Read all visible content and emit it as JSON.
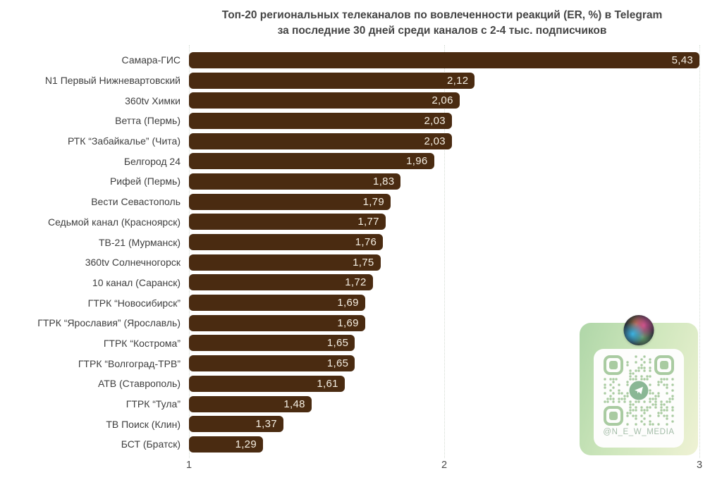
{
  "chart_data": {
    "type": "bar",
    "orientation": "horizontal",
    "title_line1": "Топ-20 региональных телеканалов по вовлеченности реакций (ER, %) в Telegram",
    "title_line2": "за последние 30 дней среди каналов с 2-4 тыс. подписчиков",
    "categories": [
      "Самара-ГИС",
      "N1 Первый Нижневартовский",
      "360tv Химки",
      "Ветта (Пермь)",
      "РТК “Забайкалье” (Чита)",
      "Белгород 24",
      "Рифей (Пермь)",
      "Вести Севастополь",
      "Седьмой канал (Красноярск)",
      "ТВ-21 (Мурманск)",
      "360tv Солнечногорск",
      "10 канал (Саранск)",
      "ГТРК “Новосибирск”",
      "ГТРК “Ярославия” (Ярославль)",
      "ГТРК “Кострома”",
      "ГТРК “Волгоград-ТРВ”",
      "АТВ (Ставрополь)",
      "ГТРК “Тула”",
      "ТВ Поиск (Клин)",
      "БСТ (Братск)"
    ],
    "values": [
      5.43,
      2.12,
      2.06,
      2.03,
      2.03,
      1.96,
      1.83,
      1.79,
      1.77,
      1.76,
      1.75,
      1.72,
      1.69,
      1.69,
      1.65,
      1.65,
      1.61,
      1.48,
      1.37,
      1.29
    ],
    "value_labels": [
      "5,43",
      "2,12",
      "2,06",
      "2,03",
      "2,03",
      "1,96",
      "1,83",
      "1,79",
      "1,77",
      "1,76",
      "1,75",
      "1,72",
      "1,69",
      "1,69",
      "1,65",
      "1,65",
      "1,61",
      "1,48",
      "1,37",
      "1,29"
    ],
    "xlabel": "",
    "ylabel": "",
    "xlim": [
      1,
      3
    ],
    "xticks": [
      "1",
      "2",
      "3"
    ],
    "grid": "vertical-dotted",
    "legend": "none",
    "bar_color": "#4a2b11",
    "value_text_color": "#f5efe3"
  },
  "watermark": {
    "handle": "@N_E_W_MEDIA",
    "qr_color": "#a9cba1",
    "telegram_badge_color": "#8ab795"
  }
}
